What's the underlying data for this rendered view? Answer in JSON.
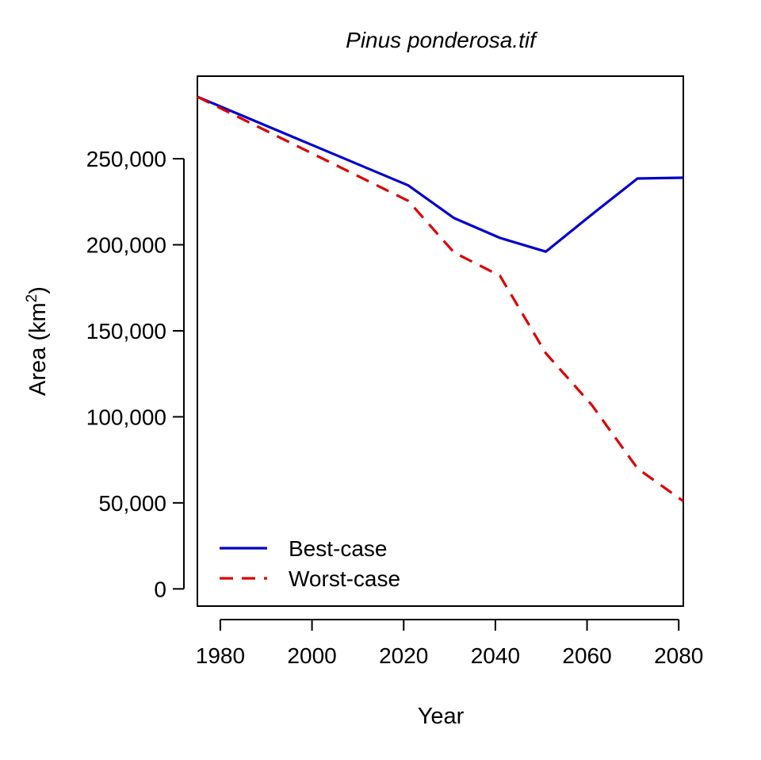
{
  "chart_data": {
    "type": "line",
    "title": "Pinus ponderosa.tif",
    "xlabel": "Year",
    "ylabel_main": "Area (km",
    "ylabel_sup": "2",
    "ylabel_close": ")",
    "xlim": [
      1975,
      2081
    ],
    "ylim": [
      -10000,
      298000
    ],
    "x_ticks": [
      1980,
      2000,
      2020,
      2040,
      2060,
      2080
    ],
    "x_tick_labels": [
      "1980",
      "2000",
      "2020",
      "2040",
      "2060",
      "2080"
    ],
    "y_ticks": [
      0,
      50000,
      100000,
      150000,
      200000,
      250000
    ],
    "y_tick_labels": [
      "0",
      "50,000",
      "100,000",
      "150,000",
      "200,000",
      "250,000"
    ],
    "grid": false,
    "legend_position": "bottom-left",
    "series": [
      {
        "name": "Best-case",
        "color": "#0000cc",
        "dash": "solid",
        "x": [
          1975,
          2021,
          2031,
          2041,
          2051,
          2061,
          2071,
          2081
        ],
        "y": [
          286000,
          234500,
          215500,
          204000,
          196000,
          217500,
          238500,
          239000
        ]
      },
      {
        "name": "Worst-case",
        "color": "#dd0000",
        "dash": "dashed",
        "x": [
          1975,
          2021,
          2031,
          2041,
          2051,
          2061,
          2071,
          2081
        ],
        "y": [
          286000,
          225500,
          195500,
          182000,
          137000,
          107000,
          70000,
          51000
        ]
      }
    ]
  }
}
